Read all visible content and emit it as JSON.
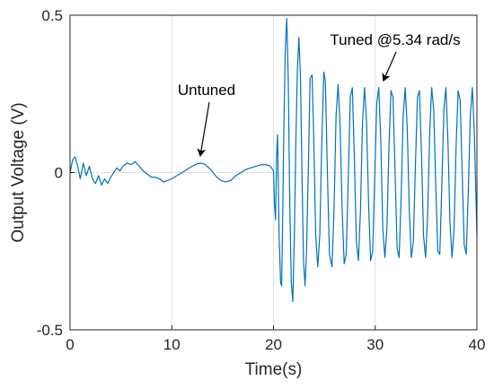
{
  "chart_data": {
    "type": "line",
    "title": "",
    "xlabel": "Time(s)",
    "ylabel": "Output Voltage (V)",
    "xlim": [
      0,
      40
    ],
    "ylim": [
      -0.5,
      0.5
    ],
    "xticks": [
      0,
      10,
      20,
      30,
      40
    ],
    "xtick_labels": [
      "0",
      "10",
      "20",
      "30",
      "40"
    ],
    "yticks": [
      -0.5,
      0,
      0.5
    ],
    "ytick_labels": [
      "-0.5",
      "0",
      "0.5"
    ],
    "grid": true,
    "colors": {
      "line": "#0072BD",
      "axis": "#262626",
      "grid": "#e1e1e1"
    },
    "annotations": [
      {
        "text": "Untuned",
        "target": {
          "x": 12.8,
          "y": 0.03
        }
      },
      {
        "text": "Tuned @5.34 rad/s",
        "target": {
          "x": 30.8,
          "y": 0.28
        }
      }
    ],
    "series": [
      {
        "points": [
          [
            0.0,
            0.0
          ],
          [
            0.25,
            0.04
          ],
          [
            0.5,
            0.05
          ],
          [
            0.75,
            0.02
          ],
          [
            1.0,
            -0.02
          ],
          [
            1.3,
            0.03
          ],
          [
            1.6,
            -0.01
          ],
          [
            1.9,
            0.02
          ],
          [
            2.2,
            -0.02
          ],
          [
            2.5,
            -0.035
          ],
          [
            2.8,
            -0.01
          ],
          [
            3.1,
            -0.04
          ],
          [
            3.4,
            -0.02
          ],
          [
            3.7,
            -0.035
          ],
          [
            4.0,
            -0.015
          ],
          [
            4.3,
            0.0
          ],
          [
            4.6,
            0.015
          ],
          [
            4.9,
            0.005
          ],
          [
            5.2,
            0.02
          ],
          [
            5.6,
            0.03
          ],
          [
            6.0,
            0.025
          ],
          [
            6.4,
            0.035
          ],
          [
            6.8,
            0.02
          ],
          [
            7.2,
            0.005
          ],
          [
            7.6,
            -0.005
          ],
          [
            8.0,
            -0.015
          ],
          [
            8.4,
            -0.015
          ],
          [
            8.8,
            -0.02
          ],
          [
            9.2,
            -0.03
          ],
          [
            9.6,
            -0.025
          ],
          [
            10.0,
            -0.02
          ],
          [
            10.5,
            -0.01
          ],
          [
            11.0,
            0.0
          ],
          [
            11.5,
            0.01
          ],
          [
            12.0,
            0.02
          ],
          [
            12.5,
            0.028
          ],
          [
            12.9,
            0.03
          ],
          [
            13.3,
            0.025
          ],
          [
            13.8,
            0.01
          ],
          [
            14.3,
            -0.01
          ],
          [
            14.8,
            -0.025
          ],
          [
            15.3,
            -0.03
          ],
          [
            15.8,
            -0.025
          ],
          [
            16.3,
            -0.01
          ],
          [
            16.8,
            0.0
          ],
          [
            17.3,
            0.01
          ],
          [
            17.8,
            0.015
          ],
          [
            18.3,
            0.02
          ],
          [
            18.8,
            0.025
          ],
          [
            19.3,
            0.025
          ],
          [
            19.7,
            0.02
          ],
          [
            20.0,
            0.005
          ],
          [
            20.1,
            -0.1
          ],
          [
            20.2,
            -0.15
          ],
          [
            20.3,
            0.05
          ],
          [
            20.4,
            0.12
          ],
          [
            20.55,
            -0.2
          ],
          [
            20.7,
            -0.35
          ],
          [
            20.8,
            -0.36
          ],
          [
            20.9,
            -0.15
          ],
          [
            21.0,
            0.1
          ],
          [
            21.15,
            0.38
          ],
          [
            21.3,
            0.49
          ],
          [
            21.45,
            0.3
          ],
          [
            21.6,
            -0.1
          ],
          [
            21.75,
            -0.35
          ],
          [
            21.9,
            -0.41
          ],
          [
            22.05,
            -0.2
          ],
          [
            22.2,
            0.1
          ],
          [
            22.35,
            0.33
          ],
          [
            22.5,
            0.43
          ],
          [
            22.65,
            0.3
          ],
          [
            22.8,
            0.0
          ],
          [
            22.95,
            -0.28
          ],
          [
            23.1,
            -0.36
          ],
          [
            23.25,
            -0.25
          ],
          [
            23.45,
            0.05
          ],
          [
            23.6,
            0.3
          ],
          [
            23.8,
            0.31
          ],
          [
            23.95,
            0.12
          ],
          [
            24.15,
            -0.2
          ],
          [
            24.35,
            -0.3
          ],
          [
            24.55,
            -0.2
          ],
          [
            24.75,
            0.1
          ],
          [
            24.95,
            0.32
          ],
          [
            25.1,
            0.29
          ],
          [
            25.3,
            0.0
          ],
          [
            25.5,
            -0.26
          ],
          [
            25.75,
            -0.3
          ],
          [
            25.95,
            -0.12
          ],
          [
            26.15,
            0.18
          ],
          [
            26.35,
            0.28
          ],
          [
            26.55,
            0.15
          ],
          [
            26.75,
            -0.12
          ],
          [
            26.95,
            -0.29
          ],
          [
            27.15,
            -0.26
          ],
          [
            27.35,
            -0.02
          ],
          [
            27.55,
            0.24
          ],
          [
            27.75,
            0.27
          ],
          [
            27.95,
            0.05
          ],
          [
            28.15,
            -0.22
          ],
          [
            28.35,
            -0.28
          ],
          [
            28.55,
            -0.12
          ],
          [
            28.75,
            0.16
          ],
          [
            28.95,
            0.27
          ],
          [
            29.15,
            0.16
          ],
          [
            29.35,
            -0.1
          ],
          [
            29.55,
            -0.28
          ],
          [
            29.75,
            -0.25
          ],
          [
            29.95,
            -0.02
          ],
          [
            30.15,
            0.22
          ],
          [
            30.35,
            0.27
          ],
          [
            30.55,
            0.1
          ],
          [
            30.75,
            -0.18
          ],
          [
            30.95,
            -0.27
          ],
          [
            31.15,
            -0.18
          ],
          [
            31.35,
            0.08
          ],
          [
            31.55,
            0.26
          ],
          [
            31.75,
            0.24
          ],
          [
            31.95,
            0.0
          ],
          [
            32.15,
            -0.24
          ],
          [
            32.35,
            -0.27
          ],
          [
            32.55,
            -0.08
          ],
          [
            32.75,
            0.18
          ],
          [
            32.95,
            0.27
          ],
          [
            33.15,
            0.14
          ],
          [
            33.35,
            -0.12
          ],
          [
            33.55,
            -0.27
          ],
          [
            33.75,
            -0.22
          ],
          [
            33.95,
            0.02
          ],
          [
            34.15,
            0.24
          ],
          [
            34.35,
            0.26
          ],
          [
            34.55,
            0.06
          ],
          [
            34.75,
            -0.2
          ],
          [
            34.95,
            -0.27
          ],
          [
            35.15,
            -0.14
          ],
          [
            35.35,
            0.12
          ],
          [
            35.55,
            0.27
          ],
          [
            35.75,
            0.2
          ],
          [
            35.95,
            -0.04
          ],
          [
            36.15,
            -0.25
          ],
          [
            36.35,
            -0.26
          ],
          [
            36.55,
            -0.04
          ],
          [
            36.75,
            0.2
          ],
          [
            36.95,
            0.27
          ],
          [
            37.15,
            0.1
          ],
          [
            37.35,
            -0.16
          ],
          [
            37.55,
            -0.27
          ],
          [
            37.75,
            -0.18
          ],
          [
            37.95,
            0.08
          ],
          [
            38.15,
            0.26
          ],
          [
            38.35,
            0.23
          ],
          [
            38.55,
            0.0
          ],
          [
            38.75,
            -0.23
          ],
          [
            38.95,
            -0.26
          ],
          [
            39.15,
            -0.06
          ],
          [
            39.35,
            0.18
          ],
          [
            39.55,
            0.27
          ],
          [
            39.75,
            0.12
          ],
          [
            40.0,
            -0.2
          ]
        ]
      }
    ]
  }
}
